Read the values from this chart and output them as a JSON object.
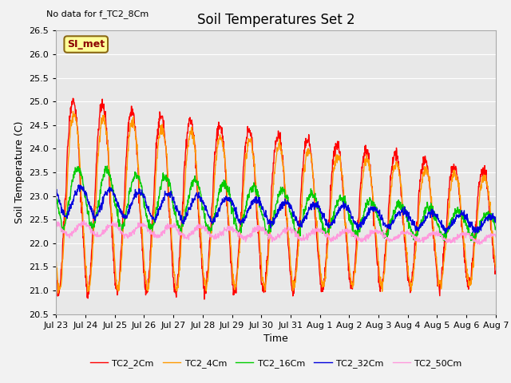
{
  "title": "Soil Temperatures Set 2",
  "subtitle": "No data for f_TC2_8Cm",
  "xlabel": "Time",
  "ylabel": "Soil Temperature (C)",
  "ylim": [
    20.5,
    26.5
  ],
  "annotation": "SI_met",
  "fig_bg": "#f2f2f2",
  "plot_bg": "#e8e8e8",
  "legend_entries": [
    "TC2_2Cm",
    "TC2_4Cm",
    "TC2_16Cm",
    "TC2_32Cm",
    "TC2_50Cm"
  ],
  "line_colors": [
    "#ff0000",
    "#ff9900",
    "#00cc00",
    "#0000dd",
    "#ff99dd"
  ],
  "xtick_labels": [
    "Jul 23",
    "Jul 24",
    "Jul 25",
    "Jul 26",
    "Jul 27",
    "Jul 28",
    "Jul 29",
    "Jul 30",
    "Jul 31",
    "Aug 1",
    "Aug 2",
    "Aug 3",
    "Aug 4",
    "Aug 5",
    "Aug 6",
    "Aug 7"
  ],
  "grid_color": "#ffffff",
  "title_fontsize": 12,
  "axis_fontsize": 9,
  "tick_fontsize": 8
}
